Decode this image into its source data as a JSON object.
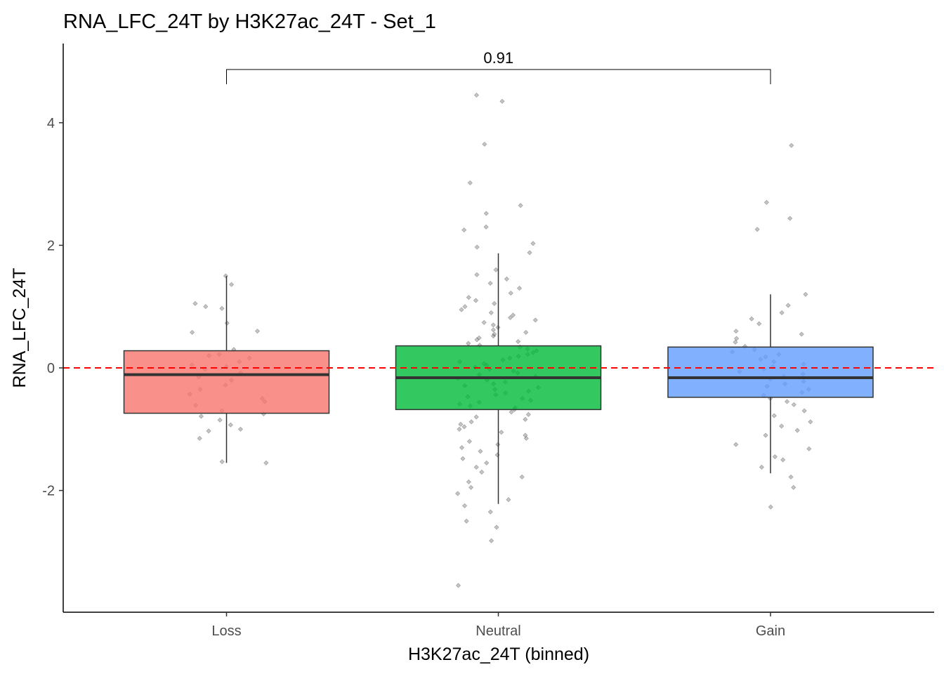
{
  "chart_data": {
    "type": "box",
    "title": "RNA_LFC_24T by H3K27ac_24T - Set_1",
    "xlabel": "H3K27ac_24T (binned)",
    "ylabel": "RNA_LFC_24T",
    "categories": [
      "Loss",
      "Neutral",
      "Gain"
    ],
    "ylim": [
      -4.0,
      5.3
    ],
    "yticks": [
      -2,
      0,
      2,
      4
    ],
    "ytick_labels": [
      "-2",
      "0",
      "2",
      "4"
    ],
    "reference_line": {
      "y": 0,
      "style": "dashed",
      "color": "#ff0000"
    },
    "comparison": {
      "from": "Loss",
      "to": "Gain",
      "label": "0.91"
    },
    "grid": false,
    "legend": "none",
    "boxes": [
      {
        "category": "Loss",
        "color": "#f8766d",
        "whisker_low": -1.55,
        "q1": -0.74,
        "median": -0.11,
        "q3": 0.28,
        "whisker_high": 1.5
      },
      {
        "category": "Neutral",
        "color": "#00ba38",
        "whisker_low": -2.22,
        "q1": -0.68,
        "median": -0.16,
        "q3": 0.36,
        "whisker_high": 1.87
      },
      {
        "category": "Gain",
        "color": "#619cff",
        "whisker_low": -1.72,
        "q1": -0.48,
        "median": -0.16,
        "q3": 0.34,
        "whisker_high": 1.2
      }
    ],
    "points": [
      {
        "category": "Loss",
        "values": [
          1.5,
          1.36,
          1.05,
          1.0,
          0.97,
          0.73,
          0.58,
          0.6,
          0.3,
          0.22,
          0.2,
          0.16,
          0.1,
          0.05,
          0.02,
          -0.02,
          -0.08,
          -0.15,
          -0.2,
          -0.28,
          -0.35,
          -0.43,
          -0.5,
          -0.55,
          -0.61,
          -0.7,
          -0.75,
          -0.79,
          -0.85,
          -0.93,
          -1.0,
          -1.03,
          -1.15,
          -1.55,
          -1.53
        ]
      },
      {
        "category": "Neutral",
        "values": [
          4.45,
          4.35,
          3.65,
          3.02,
          2.65,
          2.52,
          2.3,
          2.25,
          2.03,
          1.97,
          1.88,
          1.6,
          1.52,
          1.45,
          1.38,
          1.3,
          1.22,
          1.15,
          1.1,
          1.05,
          1.0,
          0.95,
          0.9,
          0.86,
          0.82,
          0.78,
          0.74,
          0.7,
          0.66,
          0.62,
          0.58,
          0.55,
          0.52,
          0.49,
          0.46,
          0.43,
          0.4,
          0.37,
          0.34,
          0.31,
          0.28,
          0.25,
          0.22,
          0.19,
          0.16,
          0.13,
          0.1,
          0.07,
          0.04,
          0.01,
          -0.02,
          -0.05,
          -0.08,
          -0.11,
          -0.14,
          -0.17,
          -0.2,
          -0.23,
          -0.26,
          -0.29,
          -0.32,
          -0.35,
          -0.38,
          -0.41,
          -0.44,
          -0.47,
          -0.5,
          -0.53,
          -0.56,
          -0.59,
          -0.62,
          -0.65,
          -0.68,
          -0.72,
          -0.76,
          -0.8,
          -0.84,
          -0.88,
          -0.92,
          -0.96,
          -1.0,
          -1.05,
          -1.1,
          -1.15,
          -1.2,
          -1.25,
          -1.3,
          -1.36,
          -1.42,
          -1.48,
          -1.55,
          -1.62,
          -1.7,
          -1.78,
          -1.86,
          -1.95,
          -2.05,
          -2.15,
          -2.25,
          -2.35,
          -2.5,
          -2.6,
          -2.82,
          -3.55
        ]
      },
      {
        "category": "Gain",
        "values": [
          3.63,
          2.7,
          2.44,
          2.26,
          1.2,
          1.02,
          0.9,
          0.8,
          0.72,
          0.6,
          0.55,
          0.48,
          0.42,
          0.35,
          0.3,
          0.26,
          0.22,
          0.18,
          0.14,
          0.1,
          0.06,
          0.02,
          -0.02,
          -0.06,
          -0.1,
          -0.14,
          -0.18,
          -0.22,
          -0.26,
          -0.3,
          -0.35,
          -0.4,
          -0.45,
          -0.5,
          -0.55,
          -0.6,
          -0.7,
          -0.78,
          -0.88,
          -0.95,
          -1.02,
          -1.1,
          -1.25,
          -1.32,
          -1.45,
          -1.5,
          -1.62,
          -1.78,
          -1.95,
          -2.27
        ]
      }
    ]
  }
}
